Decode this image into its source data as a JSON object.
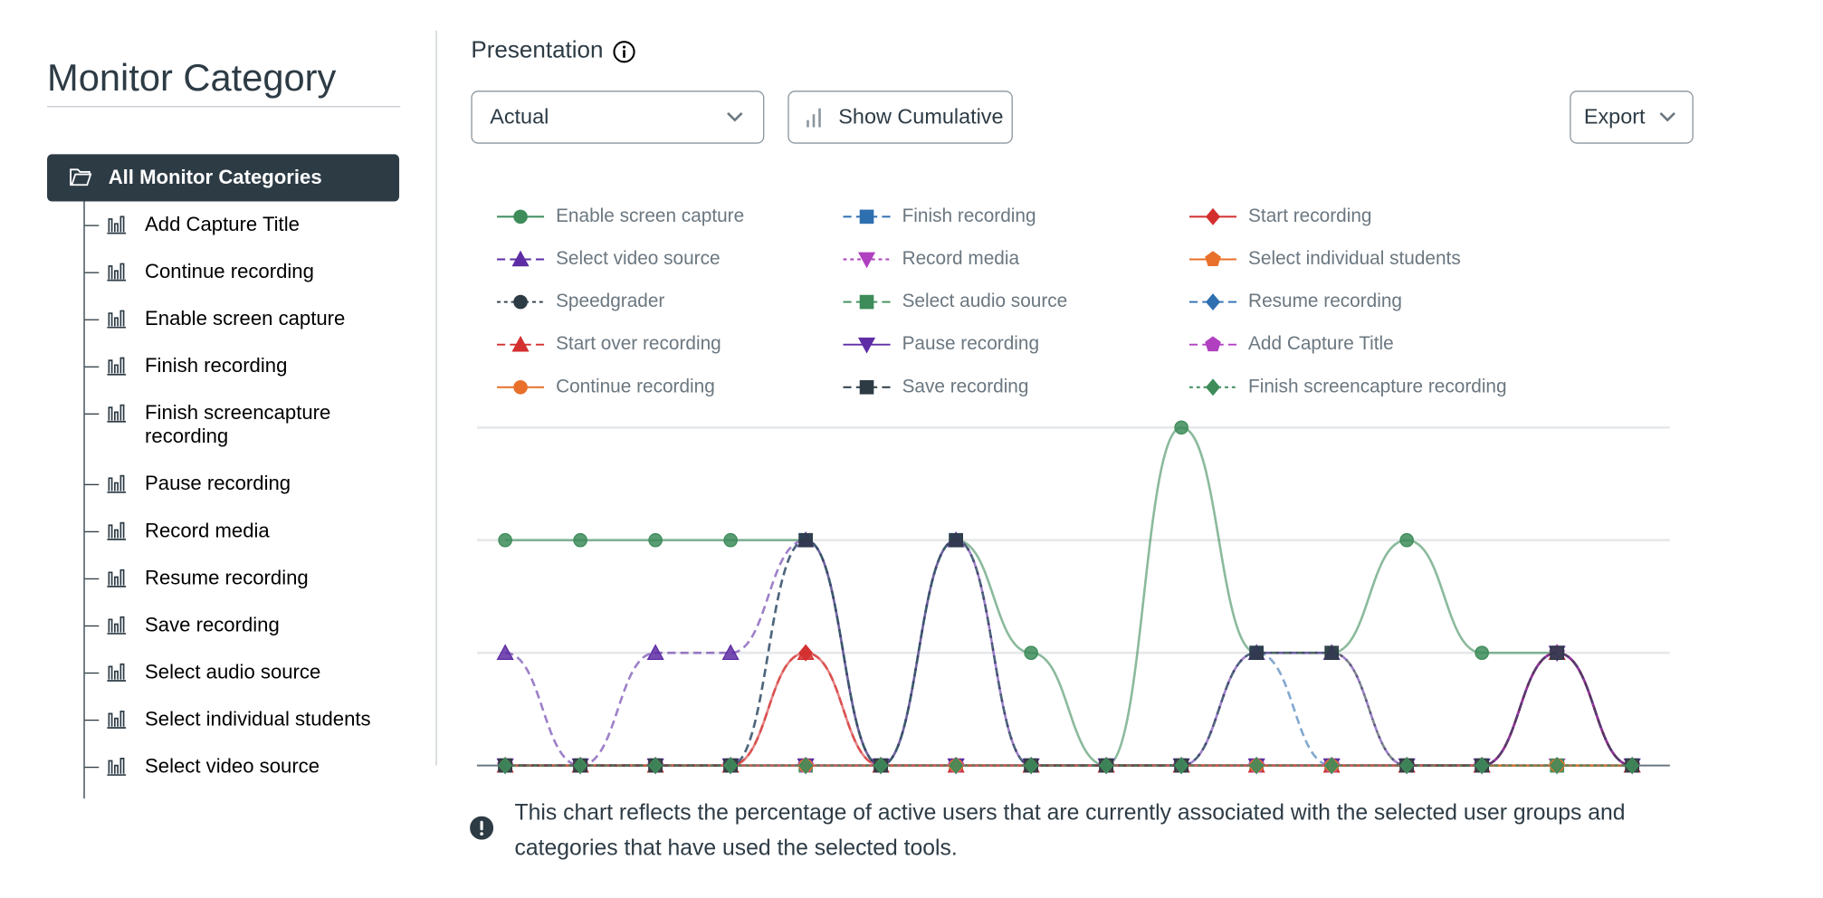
{
  "sidebar": {
    "title": "Monitor Category",
    "selected": "All Monitor Categories",
    "items": [
      "Add Capture Title",
      "Continue recording",
      "Enable screen capture",
      "Finish recording",
      "Finish screencapture recording",
      "Pause recording",
      "Record media",
      "Resume recording",
      "Save recording",
      "Select audio source",
      "Select individual students",
      "Select video source"
    ]
  },
  "header": {
    "title": "Presentation"
  },
  "controls": {
    "view": "Actual",
    "cumulative": "Show Cumulative",
    "export": "Export"
  },
  "chart_data": {
    "type": "line",
    "categories": [
      null,
      null,
      null,
      null,
      null,
      null,
      null,
      null,
      null,
      null,
      null,
      null,
      null,
      null,
      null,
      null
    ],
    "ylim": [
      0,
      3
    ],
    "gridlines": [
      0,
      1,
      2,
      3
    ],
    "smooth": true,
    "series": [
      {
        "name": "Enable screen capture",
        "color": "#3d8c5a",
        "dash": "solid",
        "marker": "circle",
        "values": [
          2,
          2,
          2,
          2,
          2,
          0,
          2,
          1,
          0,
          3,
          1,
          1,
          2,
          1,
          1,
          0
        ]
      },
      {
        "name": "Finish recording",
        "color": "#2e6fb0",
        "dash": "dashed",
        "marker": "square",
        "values": [
          0,
          0,
          0,
          0,
          2,
          0,
          2,
          0,
          0,
          0,
          1,
          0,
          0,
          0,
          1,
          0
        ]
      },
      {
        "name": "Start recording",
        "color": "#d32f2f",
        "dash": "solid",
        "marker": "diamond",
        "values": [
          0,
          0,
          0,
          0,
          1,
          0,
          0,
          0,
          0,
          0,
          0,
          0,
          0,
          0,
          1,
          0
        ]
      },
      {
        "name": "Select video source",
        "color": "#5e2ca5",
        "dash": "dashed",
        "marker": "triangle",
        "values": [
          1,
          0,
          1,
          1,
          2,
          0,
          2,
          0,
          0,
          0,
          1,
          1,
          0,
          0,
          1,
          0
        ]
      },
      {
        "name": "Record media",
        "color": "#b040c0",
        "dash": "dotted",
        "marker": "triangle-down",
        "values": [
          0,
          0,
          0,
          0,
          0,
          0,
          0,
          0,
          0,
          0,
          0,
          0,
          0,
          0,
          0,
          0
        ]
      },
      {
        "name": "Select individual students",
        "color": "#e8702a",
        "dash": "solid",
        "marker": "pentagon",
        "values": [
          0,
          0,
          0,
          0,
          0,
          0,
          0,
          0,
          0,
          0,
          0,
          0,
          0,
          0,
          0,
          0
        ]
      },
      {
        "name": "Speedgrader",
        "color": "#2d3b45",
        "dash": "dotted",
        "marker": "circle",
        "values": [
          0,
          0,
          0,
          0,
          0,
          0,
          0,
          0,
          0,
          0,
          0,
          0,
          0,
          0,
          0,
          0
        ]
      },
      {
        "name": "Select audio source",
        "color": "#3d8c5a",
        "dash": "dashed",
        "marker": "square",
        "values": [
          0,
          0,
          0,
          0,
          0,
          0,
          0,
          0,
          0,
          0,
          0,
          0,
          0,
          0,
          0,
          0
        ]
      },
      {
        "name": "Resume recording",
        "color": "#2e6fb0",
        "dash": "dashed",
        "marker": "diamond",
        "values": [
          0,
          0,
          0,
          0,
          0,
          0,
          0,
          0,
          0,
          0,
          0,
          0,
          0,
          0,
          0,
          0
        ]
      },
      {
        "name": "Start over recording",
        "color": "#d32f2f",
        "dash": "dashed",
        "marker": "triangle",
        "values": [
          0,
          0,
          0,
          0,
          1,
          0,
          0,
          0,
          0,
          0,
          0,
          0,
          0,
          0,
          1,
          0
        ]
      },
      {
        "name": "Pause recording",
        "color": "#5e2ca5",
        "dash": "solid",
        "marker": "triangle-down",
        "values": [
          0,
          0,
          0,
          0,
          0,
          0,
          0,
          0,
          0,
          0,
          0,
          0,
          0,
          0,
          1,
          0
        ]
      },
      {
        "name": "Add Capture Title",
        "color": "#b040c0",
        "dash": "dashed",
        "marker": "pentagon",
        "values": [
          0,
          0,
          0,
          0,
          0,
          0,
          0,
          0,
          0,
          0,
          0,
          0,
          0,
          0,
          1,
          0
        ]
      },
      {
        "name": "Continue recording",
        "color": "#e8702a",
        "dash": "solid",
        "marker": "circle",
        "values": [
          0,
          0,
          0,
          0,
          0,
          0,
          0,
          0,
          0,
          0,
          0,
          0,
          0,
          0,
          0,
          0
        ]
      },
      {
        "name": "Save recording",
        "color": "#2d3b45",
        "dash": "dashed",
        "marker": "square",
        "values": [
          0,
          0,
          0,
          0,
          2,
          0,
          2,
          0,
          0,
          0,
          1,
          1,
          0,
          0,
          1,
          0
        ]
      },
      {
        "name": "Finish screencapture recording",
        "color": "#3d8c5a",
        "dash": "dotted",
        "marker": "diamond",
        "values": [
          0,
          0,
          0,
          0,
          0,
          0,
          0,
          0,
          0,
          0,
          0,
          0,
          0,
          0,
          0,
          0
        ]
      }
    ]
  },
  "note": "This chart reflects the percentage of active users that are currently associated with the selected user groups and categories that have used the selected tools."
}
